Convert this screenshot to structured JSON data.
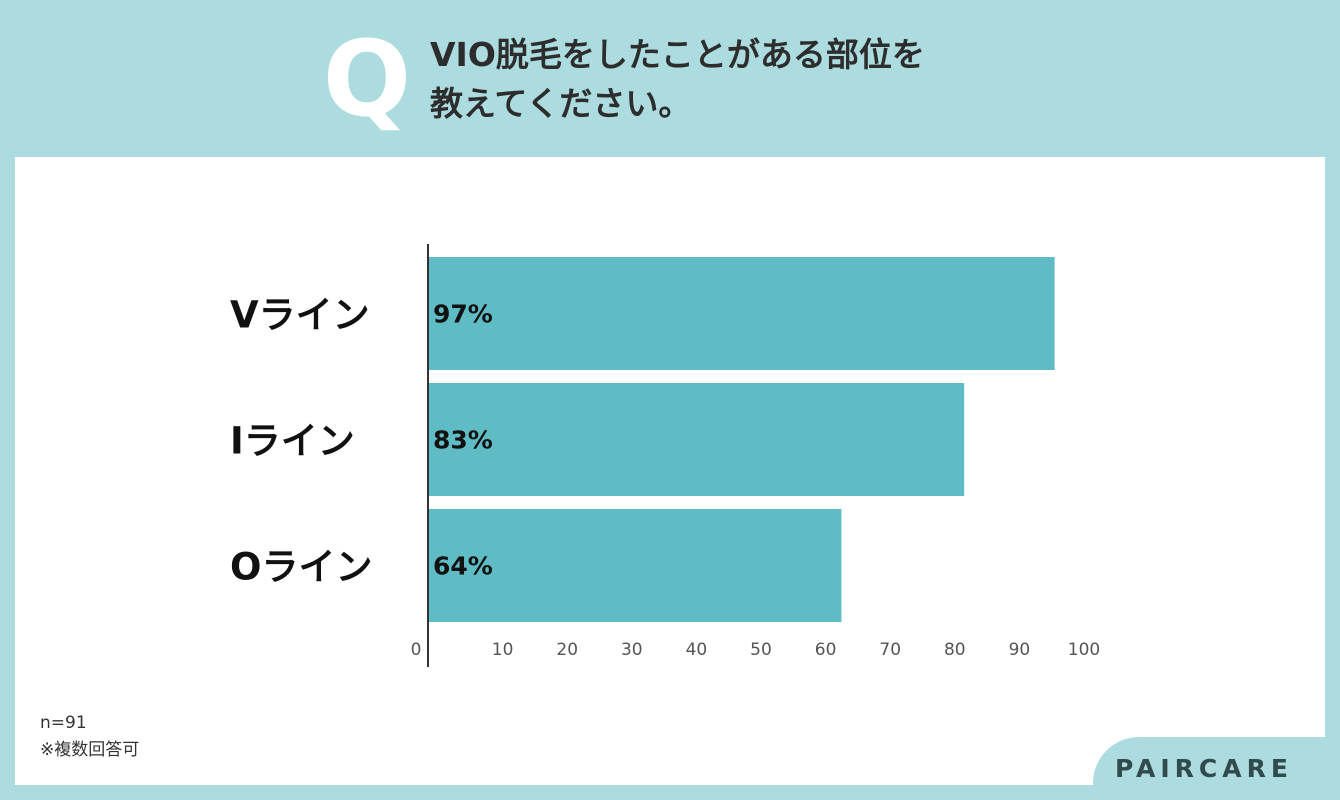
{
  "question": {
    "mark": "Q",
    "title_lines": [
      "VIO脱毛をしたことがある部位を",
      "教えてください。"
    ]
  },
  "chart_data": {
    "type": "bar",
    "orientation": "horizontal",
    "categories": [
      "Vライン",
      "Iライン",
      "Oライン"
    ],
    "values": [
      97,
      83,
      64
    ],
    "data_labels": [
      "97%",
      "83%",
      "64%"
    ],
    "xlim": [
      0,
      100
    ],
    "xticks": [
      0,
      10,
      20,
      30,
      40,
      50,
      60,
      70,
      80,
      90,
      100
    ],
    "title": "",
    "xlabel": "",
    "ylabel": "",
    "grid": false,
    "bar_color": "#60bcc4",
    "axis_color": "#333333",
    "tick_color": "#555555",
    "category_color": "#111111",
    "label_color": "#111111"
  },
  "notes": {
    "sample": "n=91",
    "multiple": "※複数回答可"
  },
  "brand": {
    "name": "PAIRCARE",
    "background": "#acdcdf"
  }
}
